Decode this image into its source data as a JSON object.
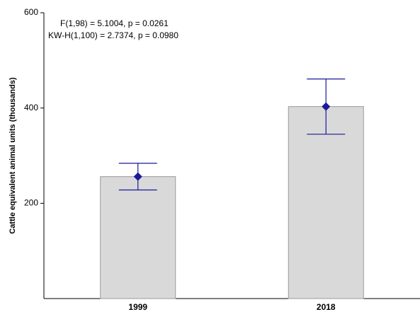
{
  "chart_data": {
    "type": "bar",
    "annotations": [
      "F(1,98) = 5.1004, p = 0.0261",
      "KW-H(1,100) = 2.7374, p = 0.0980"
    ],
    "y_label": "Cattle equivalent animal units (thousands)",
    "categories": [
      "1999",
      "2018"
    ],
    "values": [
      256,
      403
    ],
    "errors": [
      28,
      58
    ],
    "color": "#d9d9d9",
    "marker_color": "#1a1a9a",
    "ylim": [
      0,
      600
    ],
    "yticks": [
      200,
      400,
      600
    ]
  }
}
